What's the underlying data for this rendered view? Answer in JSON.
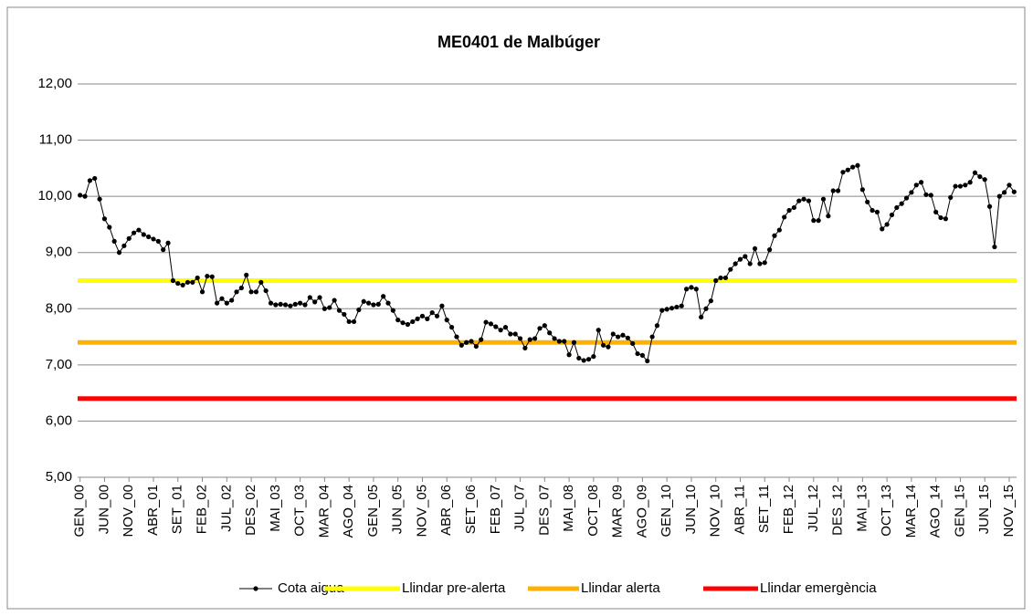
{
  "chart_data": {
    "type": "line",
    "title": "ME0401 de Malbúger",
    "categories": [
      "GEN_00",
      null,
      null,
      null,
      null,
      "JUN_00",
      null,
      null,
      null,
      null,
      "NOV_00",
      null,
      null,
      null,
      null,
      "ABR_01",
      null,
      null,
      null,
      null,
      "SET_01",
      null,
      null,
      null,
      null,
      "FEB_02",
      null,
      null,
      null,
      null,
      "JUL_02",
      null,
      null,
      null,
      null,
      "DES_02",
      null,
      null,
      null,
      null,
      "MAI_03",
      null,
      null,
      null,
      null,
      "OCT_03",
      null,
      null,
      null,
      null,
      "MAR_04",
      null,
      null,
      null,
      null,
      "AGO_04",
      null,
      null,
      null,
      null,
      "GEN_05",
      null,
      null,
      null,
      null,
      "JUN_05",
      null,
      null,
      null,
      null,
      "NOV_05",
      null,
      null,
      null,
      null,
      "ABR_06",
      null,
      null,
      null,
      null,
      "SET_06",
      null,
      null,
      null,
      null,
      "FEB_07",
      null,
      null,
      null,
      null,
      "JUL_07",
      null,
      null,
      null,
      null,
      "DES_07",
      null,
      null,
      null,
      null,
      "MAI_08",
      null,
      null,
      null,
      null,
      "OCT_08",
      null,
      null,
      null,
      null,
      "MAR_09",
      null,
      null,
      null,
      null,
      "AGO_09",
      null,
      null,
      null,
      null,
      "GEN_10",
      null,
      null,
      null,
      null,
      "JUN_10",
      null,
      null,
      null,
      null,
      "NOV_10",
      null,
      null,
      null,
      null,
      "ABR_11",
      null,
      null,
      null,
      null,
      "SET_11",
      null,
      null,
      null,
      null,
      "FEB_12",
      null,
      null,
      null,
      null,
      "JUL_12",
      null,
      null,
      null,
      null,
      "DES_12",
      null,
      null,
      null,
      null,
      "MAI_13",
      null,
      null,
      null,
      null,
      "OCT_13",
      null,
      null,
      null,
      null,
      "MAR_14",
      null,
      null,
      null,
      null,
      "AGO_14",
      null,
      null,
      null,
      null,
      "GEN_15",
      null,
      null,
      null,
      null,
      "JUN_15",
      null,
      null,
      null,
      null,
      "NOV_15",
      null
    ],
    "series": [
      {
        "name": "Cota aigua",
        "color": "#000000",
        "values": [
          10.02,
          10.0,
          10.28,
          10.32,
          9.95,
          9.6,
          9.45,
          9.2,
          9.0,
          9.12,
          9.25,
          9.35,
          9.4,
          9.32,
          9.28,
          9.24,
          9.2,
          9.05,
          9.17,
          8.5,
          8.45,
          8.42,
          8.47,
          8.47,
          8.55,
          8.3,
          8.58,
          8.57,
          8.1,
          8.18,
          8.1,
          8.15,
          8.3,
          8.37,
          8.6,
          8.3,
          8.3,
          8.47,
          8.32,
          8.1,
          8.07,
          8.08,
          8.07,
          8.05,
          8.08,
          8.1,
          8.07,
          8.2,
          8.12,
          8.2,
          8.0,
          8.02,
          8.15,
          7.97,
          7.9,
          7.77,
          7.77,
          7.98,
          8.13,
          8.1,
          8.07,
          8.08,
          8.22,
          8.1,
          7.97,
          7.8,
          7.75,
          7.72,
          7.77,
          7.82,
          7.87,
          7.82,
          7.93,
          7.87,
          8.05,
          7.8,
          7.67,
          7.5,
          7.35,
          7.4,
          7.42,
          7.33,
          7.45,
          7.76,
          7.73,
          7.68,
          7.62,
          7.67,
          7.55,
          7.55,
          7.47,
          7.3,
          7.45,
          7.47,
          7.65,
          7.7,
          7.57,
          7.47,
          7.42,
          7.42,
          7.18,
          7.4,
          7.12,
          7.08,
          7.1,
          7.15,
          7.62,
          7.35,
          7.32,
          7.55,
          7.5,
          7.53,
          7.48,
          7.38,
          7.2,
          7.17,
          7.07,
          7.5,
          7.7,
          7.97,
          7.99,
          8.01,
          8.03,
          8.05,
          8.35,
          8.38,
          8.35,
          7.85,
          8.0,
          8.14,
          8.5,
          8.55,
          8.55,
          8.7,
          8.8,
          8.88,
          8.93,
          8.8,
          9.07,
          8.8,
          8.82,
          9.05,
          9.3,
          9.4,
          9.63,
          9.75,
          9.8,
          9.92,
          9.95,
          9.92,
          9.57,
          9.57,
          9.95,
          9.65,
          10.1,
          10.1,
          10.43,
          10.47,
          10.52,
          10.55,
          10.12,
          9.9,
          9.75,
          9.72,
          9.42,
          9.5,
          9.67,
          9.8,
          9.87,
          9.97,
          10.07,
          10.2,
          10.25,
          10.03,
          10.02,
          9.72,
          9.62,
          9.6,
          9.98,
          10.18,
          10.18,
          10.2,
          10.25,
          10.42,
          10.35,
          10.3,
          9.82,
          9.1,
          10.0,
          10.07,
          10.2,
          10.08
        ]
      }
    ],
    "thresholds": [
      {
        "name": "Llindar pre-alerta",
        "color": "#ffff00",
        "value": 8.5
      },
      {
        "name": "Llindar alerta",
        "color": "#ffb000",
        "value": 7.4
      },
      {
        "name": "Llindar emergència",
        "color": "#ff0000",
        "value": 6.4
      }
    ],
    "ylim": [
      5,
      12
    ],
    "yticks": [
      {
        "value": 5,
        "label": "5,00"
      },
      {
        "value": 6,
        "label": "6,00"
      },
      {
        "value": 7,
        "label": "7,00"
      },
      {
        "value": 8,
        "label": "8,00"
      },
      {
        "value": 9,
        "label": "9,00"
      },
      {
        "value": 10,
        "label": "10,00"
      },
      {
        "value": 11,
        "label": "11,00"
      },
      {
        "value": 12,
        "label": "12,00"
      }
    ],
    "grid": true,
    "legend": "bottom"
  }
}
